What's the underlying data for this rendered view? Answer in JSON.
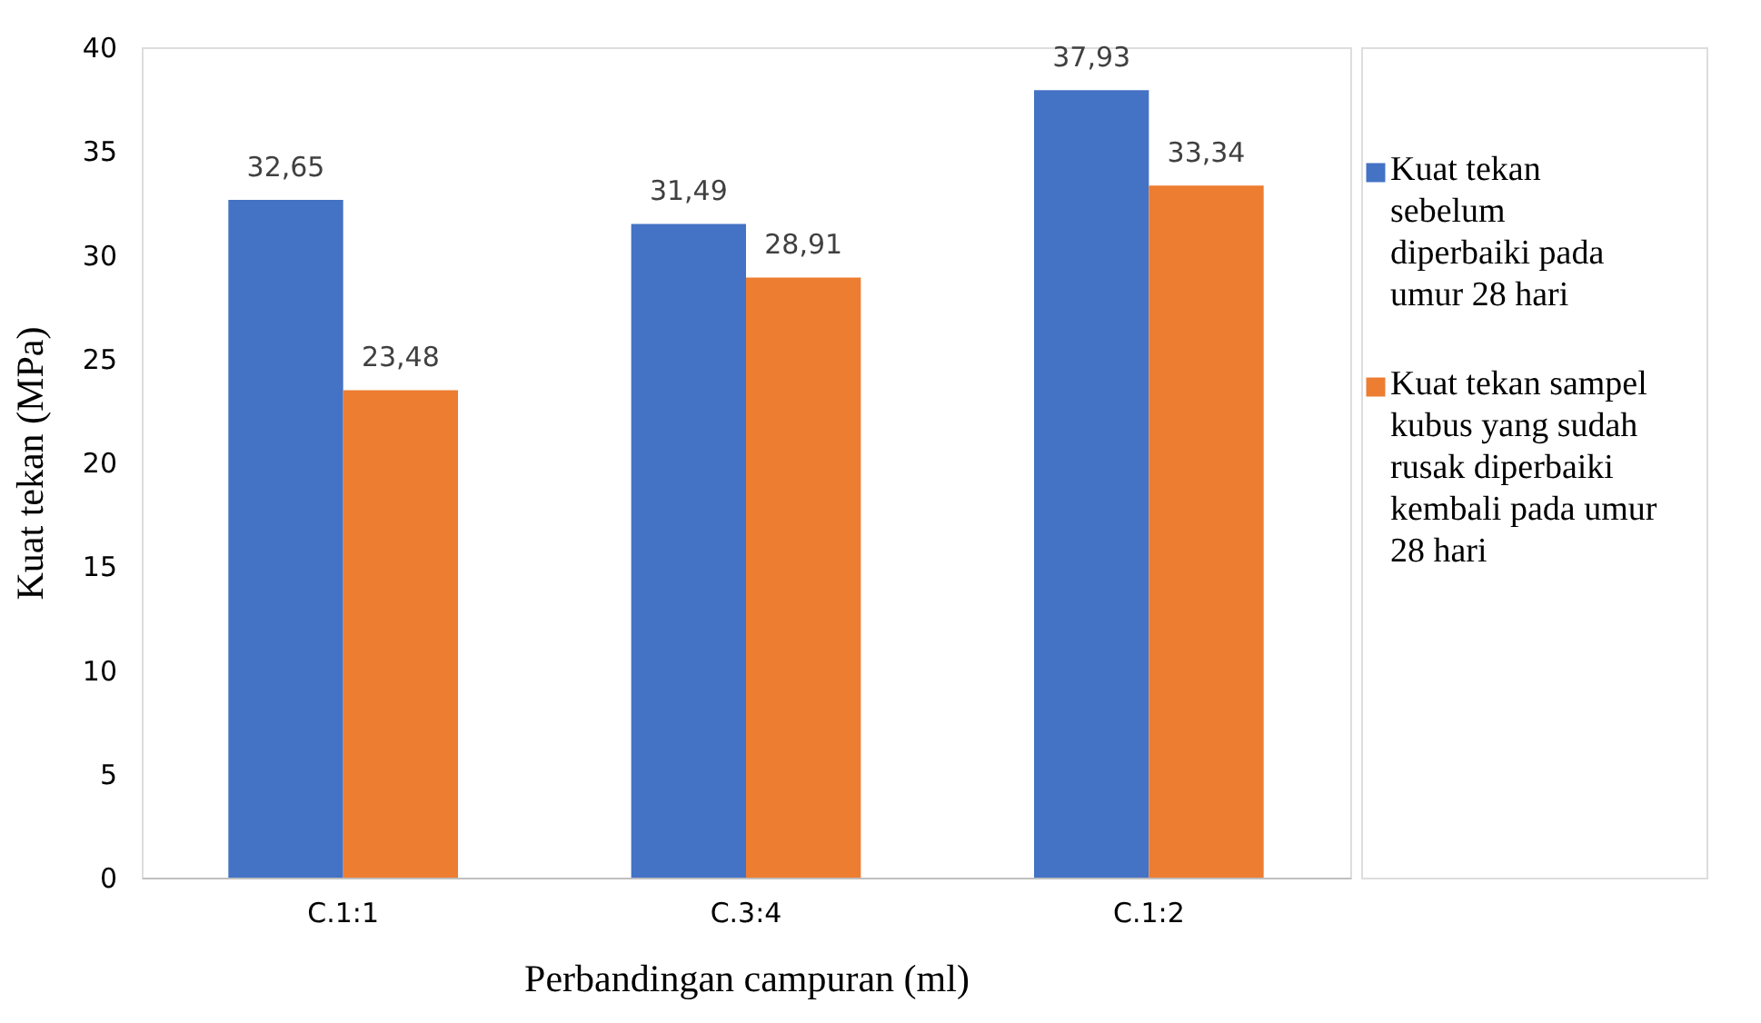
{
  "chart_data": {
    "type": "bar",
    "xlabel": "Perbandingan campuran (ml)",
    "ylabel": "Kuat tekan (MPa)",
    "categories": [
      "C.1:1",
      "C.3:4",
      "C.1:2"
    ],
    "series": [
      {
        "name": "Kuat tekan sebelum diperbaiki pada umur 28 hari",
        "color": "#4472c4",
        "values": [
          32.65,
          31.49,
          37.93
        ],
        "value_labels": [
          "32,65",
          "31,49",
          "37,93"
        ]
      },
      {
        "name": "Kuat tekan sampel kubus yang sudah rusak diperbaiki kembali pada umur 28 hari",
        "color": "#ed7d31",
        "values": [
          23.48,
          28.91,
          33.34
        ],
        "value_labels": [
          "23,48",
          "28,91",
          "33,34"
        ]
      }
    ],
    "ylim": [
      0,
      40
    ],
    "yticks": [
      0,
      5,
      10,
      15,
      20,
      25,
      30,
      35,
      40
    ],
    "grid": false,
    "legend": "right"
  }
}
